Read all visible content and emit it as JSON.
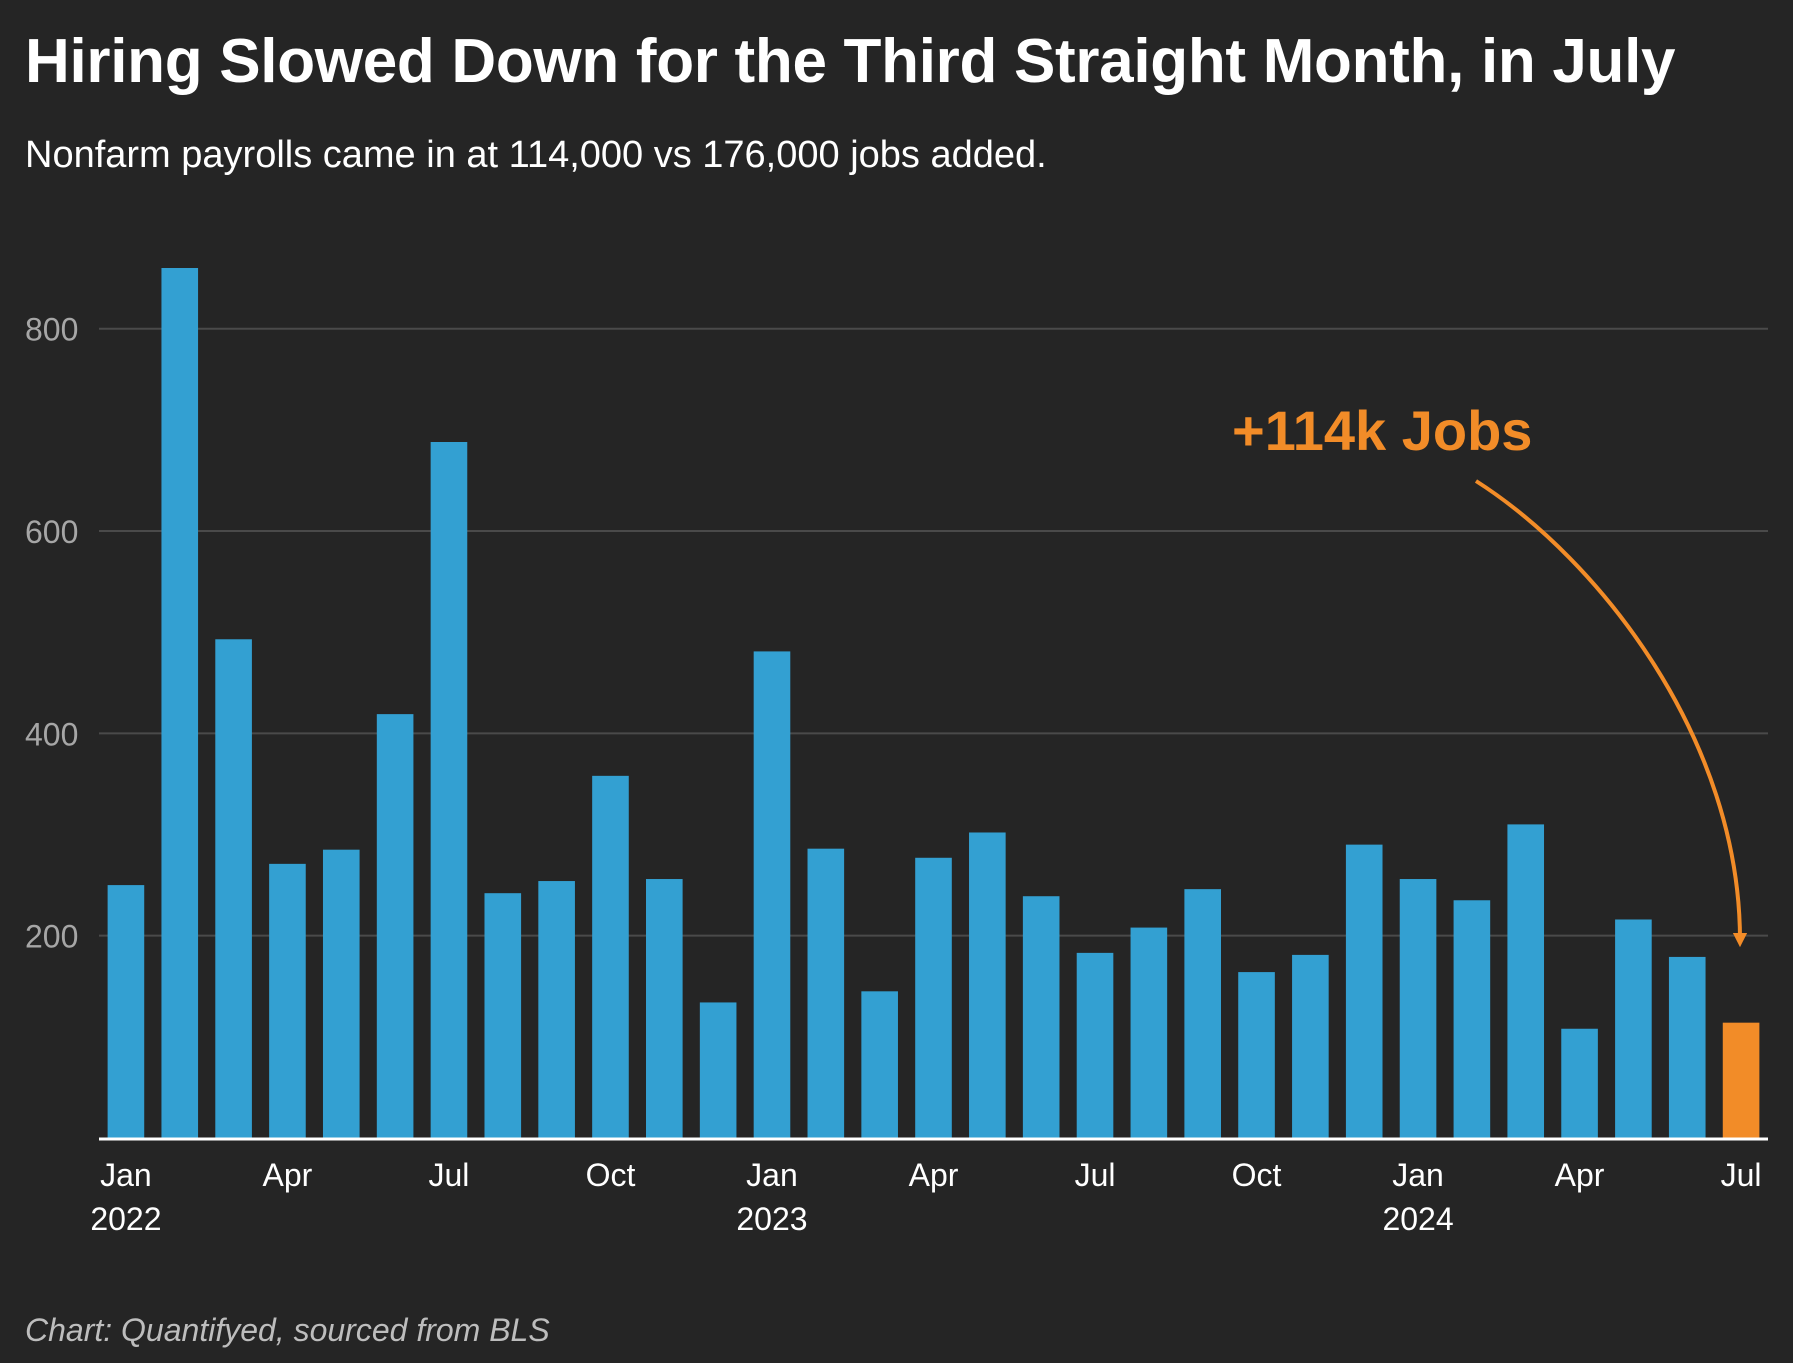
{
  "chart_data": {
    "type": "bar",
    "title": "Hiring Slowed Down for the Third Straight Month, in July",
    "subtitle": "Nonfarm payrolls came in at 114,000 vs 176,000 jobs added.",
    "source": "Chart: Quantifyed, sourced from BLS",
    "annotation": "+114k Jobs",
    "ylim": [
      0,
      900
    ],
    "yticks": [
      200,
      400,
      600,
      800
    ],
    "grid": true,
    "categories": [
      "Jan 2022",
      "Feb 2022",
      "Mar 2022",
      "Apr 2022",
      "May 2022",
      "Jun 2022",
      "Jul 2022",
      "Aug 2022",
      "Sep 2022",
      "Oct 2022",
      "Nov 2022",
      "Dec 2022",
      "Jan 2023",
      "Feb 2023",
      "Mar 2023",
      "Apr 2023",
      "May 2023",
      "Jun 2023",
      "Jul 2023",
      "Aug 2023",
      "Sep 2023",
      "Oct 2023",
      "Nov 2023",
      "Dec 2023",
      "Jan 2024",
      "Feb 2024",
      "Mar 2024",
      "Apr 2024",
      "May 2024",
      "Jun 2024",
      "Jul 2024"
    ],
    "values": [
      250,
      860,
      493,
      271,
      285,
      419,
      688,
      242,
      254,
      358,
      256,
      134,
      481,
      286,
      145,
      277,
      302,
      239,
      183,
      208,
      246,
      164,
      181,
      290,
      256,
      235,
      310,
      108,
      216,
      179,
      114
    ],
    "highlight_index": 30,
    "bar_color": "#33a0d2",
    "highlight_color": "#f28c28",
    "x_tick_labels": [
      {
        "index": 0,
        "month": "Jan",
        "year": "2022"
      },
      {
        "index": 3,
        "month": "Apr",
        "year": ""
      },
      {
        "index": 6,
        "month": "Jul",
        "year": ""
      },
      {
        "index": 9,
        "month": "Oct",
        "year": ""
      },
      {
        "index": 12,
        "month": "Jan",
        "year": "2023"
      },
      {
        "index": 15,
        "month": "Apr",
        "year": ""
      },
      {
        "index": 18,
        "month": "Jul",
        "year": ""
      },
      {
        "index": 21,
        "month": "Oct",
        "year": ""
      },
      {
        "index": 24,
        "month": "Jan",
        "year": "2024"
      },
      {
        "index": 27,
        "month": "Apr",
        "year": ""
      },
      {
        "index": 30,
        "month": "Jul",
        "year": ""
      }
    ]
  }
}
